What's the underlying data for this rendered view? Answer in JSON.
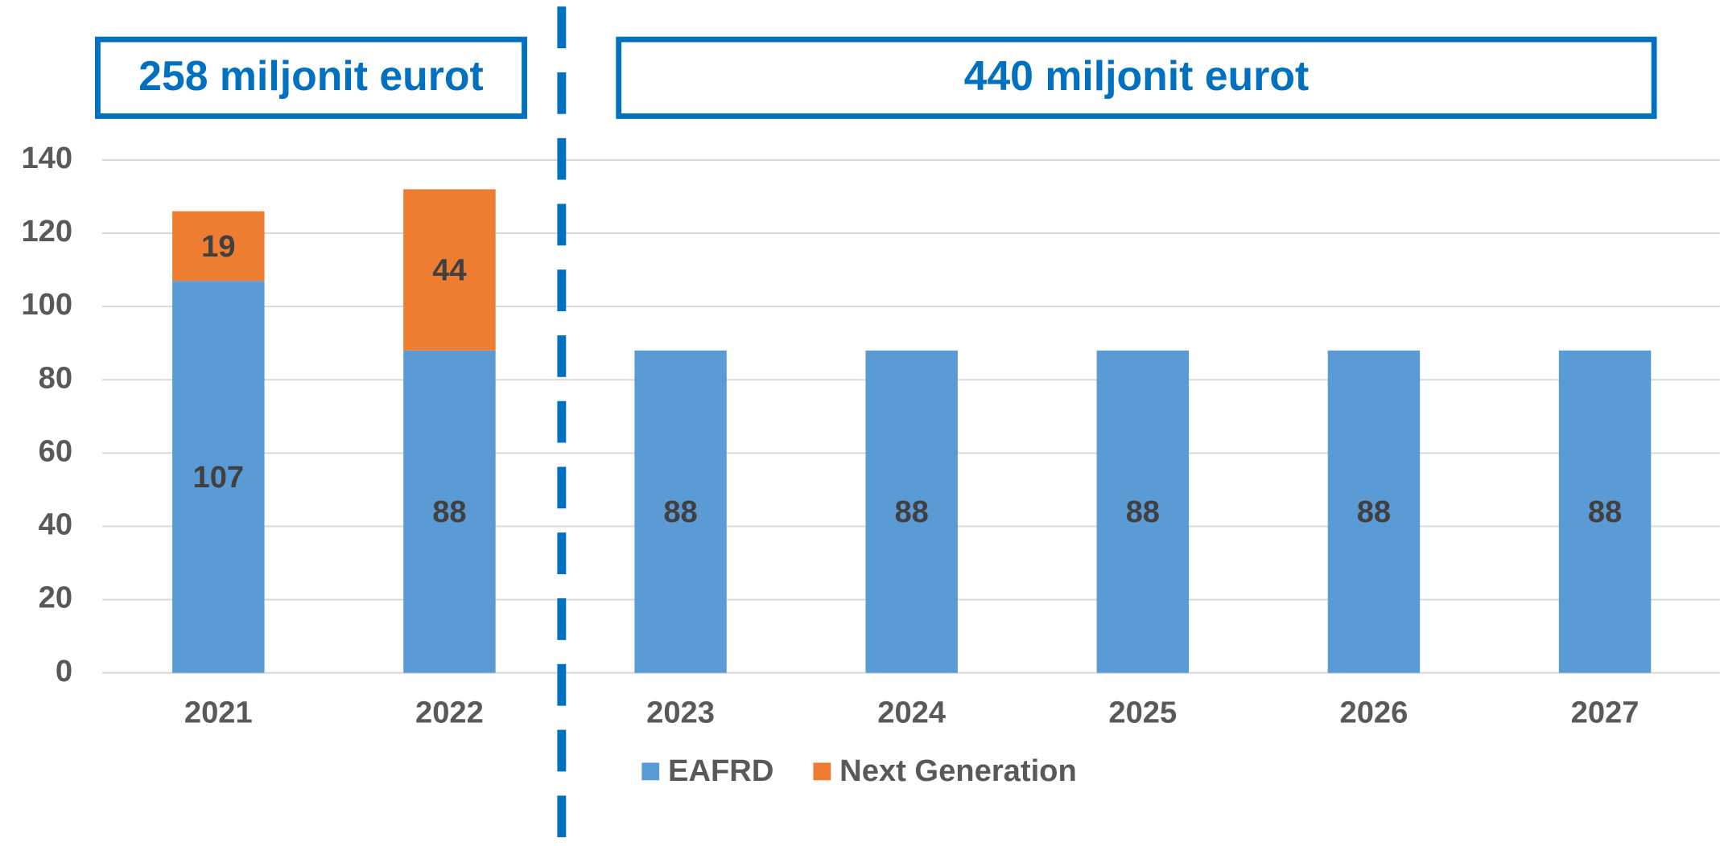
{
  "chart_data": {
    "type": "stacked_bar",
    "categories": [
      "2021",
      "2022",
      "2023",
      "2024",
      "2025",
      "2026",
      "2027"
    ],
    "series": [
      {
        "name": "EAFRD",
        "color": "#5b9bd5",
        "values": [
          107,
          88,
          88,
          88,
          88,
          88,
          88
        ]
      },
      {
        "name": "Next Generation",
        "color": "#ed7d31",
        "values": [
          19,
          44,
          null,
          null,
          null,
          null,
          null
        ]
      }
    ],
    "ylim": [
      0,
      140
    ],
    "yticks": [
      0,
      20,
      40,
      60,
      80,
      100,
      120,
      140
    ],
    "grid": true,
    "annotations": [
      "258 miljonit eurot",
      "440 miljonit eurot"
    ],
    "legend": "bottom"
  }
}
